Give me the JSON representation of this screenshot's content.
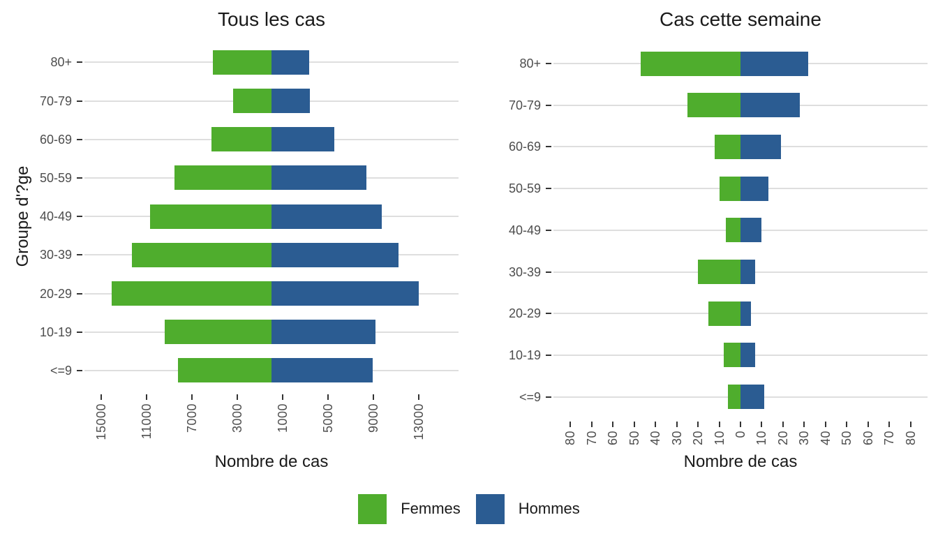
{
  "figure": {
    "background": "#ffffff",
    "legend": {
      "position": "bottom-center",
      "items": [
        {
          "label": "Femmes",
          "color": "#4fad2d"
        },
        {
          "label": "Hommes",
          "color": "#2b5c92"
        }
      ]
    },
    "colors": {
      "femmes": "#4fad2d",
      "hommes": "#2b5c92",
      "gridline": "#dedede",
      "axis_text": "#4d4d4d",
      "title_text": "#1a1a1a"
    }
  },
  "chart_data": [
    {
      "type": "bar",
      "subtype": "diverging-horizontal-pyramid",
      "title": "Tous les cas",
      "xlabel": "Nombre de cas",
      "ylabel": "Groupe d'?ge",
      "categories_top_to_bottom": [
        "80+",
        "70-79",
        "60-69",
        "50-59",
        "40-49",
        "30-39",
        "20-29",
        "10-19",
        "<=9"
      ],
      "series": [
        {
          "name": "Femmes",
          "side": "left",
          "color": "#4fad2d",
          "values": [
            5200,
            3400,
            5300,
            8550,
            10700,
            12300,
            14100,
            9400,
            8250
          ]
        },
        {
          "name": "Hommes",
          "side": "right",
          "color": "#2b5c92",
          "values": [
            3300,
            3400,
            5550,
            8350,
            9700,
            11200,
            13000,
            9200,
            8950
          ]
        }
      ],
      "xlim": [
        -16500,
        16500
      ],
      "xticks": [
        -15000,
        -11000,
        -7000,
        -3000,
        1000,
        5000,
        9000,
        13000
      ],
      "xtick_labels": [
        "15000",
        "11000",
        "7000",
        "3000",
        "1000",
        "5000",
        "9000",
        "13000"
      ],
      "grid": "horizontal-only",
      "legend_position": "shared-bottom"
    },
    {
      "type": "bar",
      "subtype": "diverging-horizontal-pyramid",
      "title": "Cas cette semaine",
      "xlabel": "Nombre de cas",
      "ylabel": "",
      "categories_top_to_bottom": [
        "80+",
        "70-79",
        "60-69",
        "50-59",
        "40-49",
        "30-39",
        "20-29",
        "10-19",
        "<=9"
      ],
      "series": [
        {
          "name": "Femmes",
          "side": "left",
          "color": "#4fad2d",
          "values": [
            47,
            25,
            12,
            10,
            7,
            20,
            15,
            8,
            6
          ]
        },
        {
          "name": "Hommes",
          "side": "right",
          "color": "#2b5c92",
          "values": [
            32,
            28,
            19,
            13,
            10,
            7,
            5,
            7,
            11
          ]
        }
      ],
      "xlim": [
        -88,
        88
      ],
      "xticks": [
        -80,
        -70,
        -60,
        -50,
        -40,
        -30,
        -20,
        -10,
        0,
        10,
        20,
        30,
        40,
        50,
        60,
        70,
        80
      ],
      "xtick_labels": [
        "80",
        "70",
        "60",
        "50",
        "40",
        "30",
        "20",
        "10",
        "0",
        "10",
        "20",
        "30",
        "40",
        "50",
        "60",
        "70",
        "80"
      ],
      "grid": "horizontal-only",
      "legend_position": "shared-bottom"
    }
  ]
}
